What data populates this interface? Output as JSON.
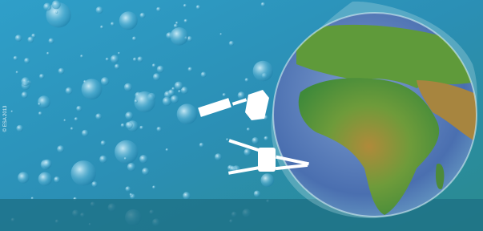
{
  "credit": "© ESA 2013"
}
